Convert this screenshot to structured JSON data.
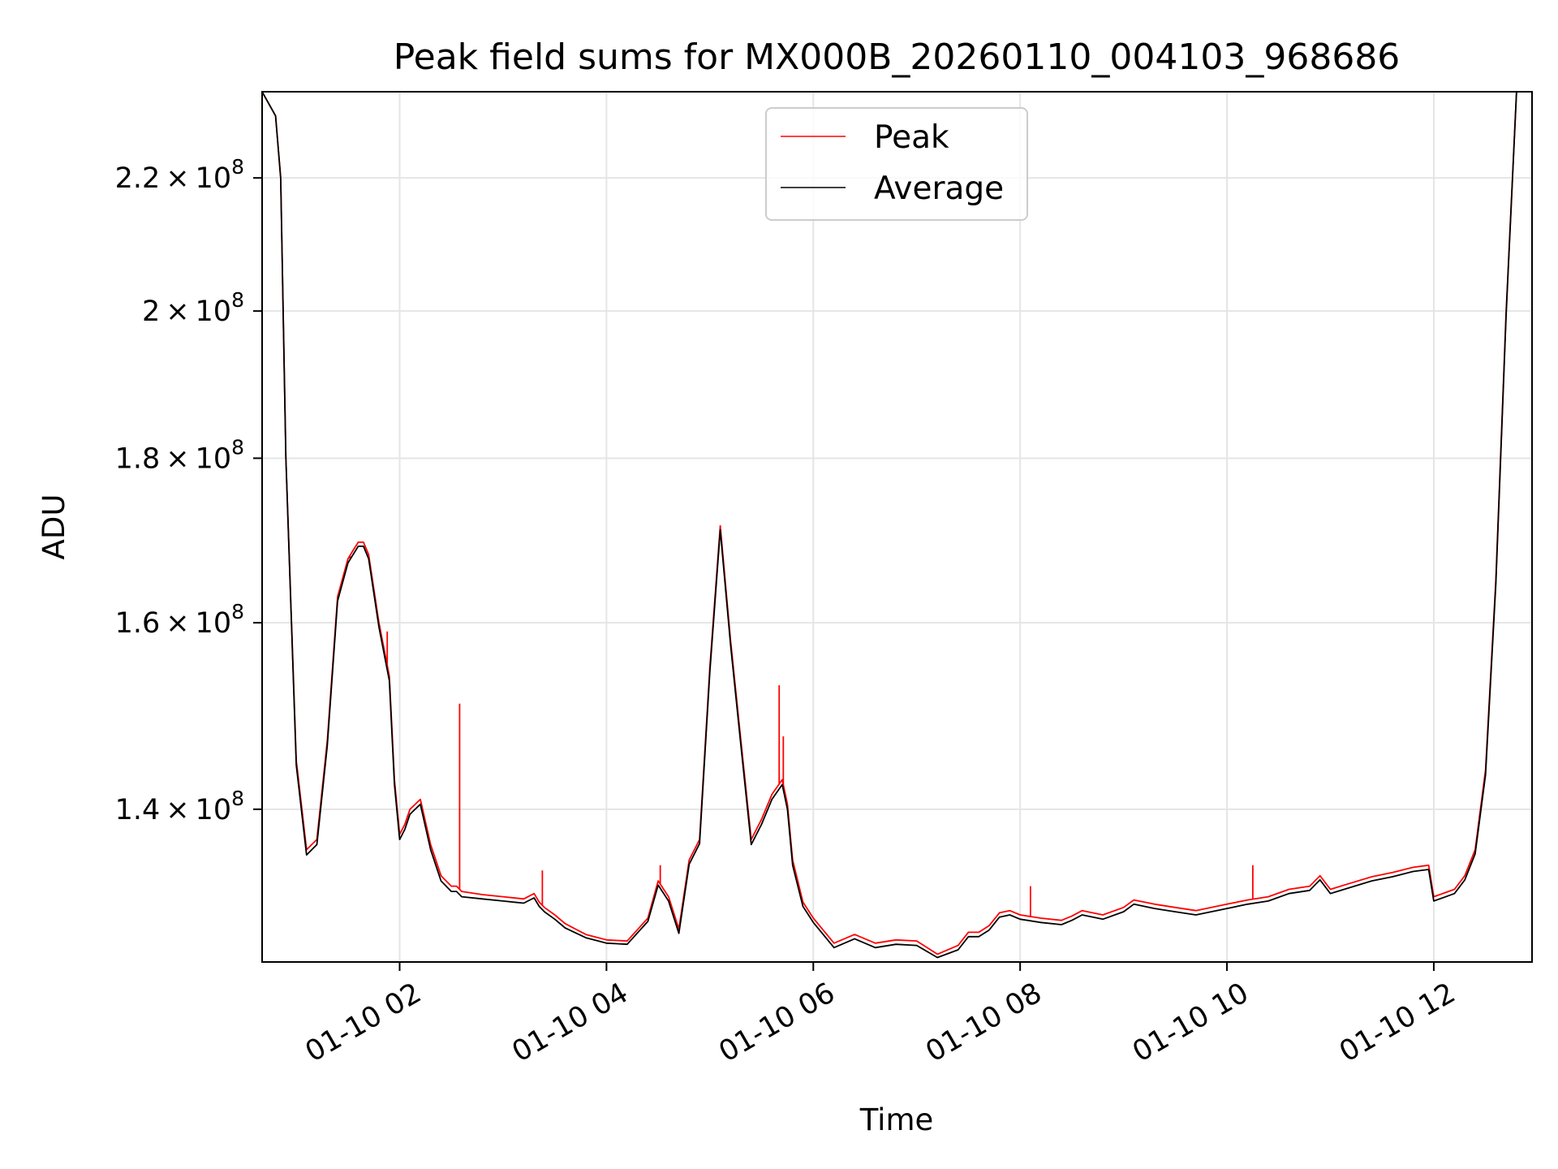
{
  "chart_data": {
    "type": "line",
    "title": "Peak field sums for MX000B_20260110_004103_968686",
    "xlabel": "Time",
    "ylabel": "ADU",
    "x_unit": "hours since 01-10 00:00",
    "xlim": [
      0.67,
      12.95
    ],
    "ylim": [
      125500000.0,
      234000000.0
    ],
    "y_scale": "log",
    "grid": true,
    "legend_position": "upper-center",
    "x_ticks": [
      {
        "value": 2,
        "label": "01-10 02"
      },
      {
        "value": 4,
        "label": "01-10 04"
      },
      {
        "value": 6,
        "label": "01-10 06"
      },
      {
        "value": 8,
        "label": "01-10 08"
      },
      {
        "value": 10,
        "label": "01-10 10"
      },
      {
        "value": 12,
        "label": "01-10 12"
      }
    ],
    "y_ticks": [
      {
        "value": 140000000.0,
        "mantissa": "1.4",
        "exp": "8"
      },
      {
        "value": 160000000.0,
        "mantissa": "1.6",
        "exp": "8"
      },
      {
        "value": 180000000.0,
        "mantissa": "1.8",
        "exp": "8"
      },
      {
        "value": 200000000.0,
        "mantissa": "2",
        "exp": "8"
      },
      {
        "value": 220000000.0,
        "mantissa": "2.2",
        "exp": "8"
      }
    ],
    "series": [
      {
        "name": "Peak",
        "color": "#ff0000",
        "x": [
          0.67,
          0.8,
          0.85,
          0.9,
          1.0,
          1.1,
          1.2,
          1.3,
          1.4,
          1.5,
          1.55,
          1.6,
          1.65,
          1.7,
          1.8,
          1.9,
          1.95,
          2.0,
          2.05,
          2.1,
          2.2,
          2.3,
          2.4,
          2.5,
          2.55,
          2.6,
          2.8,
          3.0,
          3.2,
          3.3,
          3.35,
          3.4,
          3.5,
          3.6,
          3.8,
          4.0,
          4.2,
          4.4,
          4.5,
          4.6,
          4.7,
          4.8,
          4.9,
          5.0,
          5.1,
          5.2,
          5.3,
          5.4,
          5.5,
          5.6,
          5.7,
          5.75,
          5.8,
          5.9,
          6.0,
          6.2,
          6.4,
          6.6,
          6.8,
          7.0,
          7.2,
          7.4,
          7.5,
          7.6,
          7.7,
          7.8,
          7.9,
          8.0,
          8.2,
          8.4,
          8.5,
          8.6,
          8.8,
          9.0,
          9.1,
          9.3,
          9.5,
          9.7,
          10.0,
          10.2,
          10.4,
          10.6,
          10.8,
          10.9,
          11.0,
          11.2,
          11.4,
          11.6,
          11.8,
          11.95,
          12.0,
          12.2,
          12.3,
          12.4,
          12.5,
          12.6,
          12.7,
          12.8,
          12.95
        ],
        "y": [
          234000000.0,
          230000000.0,
          220000000.0,
          180000000.0,
          145000000.0,
          136000000.0,
          137000000.0,
          147000000.0,
          163000000.0,
          167500000.0,
          168500000.0,
          169500000.0,
          169500000.0,
          168000000.0,
          160000000.0,
          154000000.0,
          143000000.0,
          137500000.0,
          138500000.0,
          140000000.0,
          141000000.0,
          136500000.0,
          133500000.0,
          132500000.0,
          132500000.0,
          132000000.0,
          131700000.0,
          131500000.0,
          131300000.0,
          131800000.0,
          131000000.0,
          130500000.0,
          129800000.0,
          129000000.0,
          128000000.0,
          127500000.0,
          127400000.0,
          129500000.0,
          133000000.0,
          131500000.0,
          128500000.0,
          135000000.0,
          137000000.0,
          155000000.0,
          171500000.0,
          158000000.0,
          147000000.0,
          137000000.0,
          139000000.0,
          141500000.0,
          143000000.0,
          140500000.0,
          135000000.0,
          131000000.0,
          129500000.0,
          127200000.0,
          128000000.0,
          127200000.0,
          127500000.0,
          127400000.0,
          126200000.0,
          127000000.0,
          128200000.0,
          128200000.0,
          128800000.0,
          130000000.0,
          130200000.0,
          129800000.0,
          129500000.0,
          129300000.0,
          129700000.0,
          130200000.0,
          129800000.0,
          130500000.0,
          131200000.0,
          130800000.0,
          130500000.0,
          130200000.0,
          130800000.0,
          131200000.0,
          131500000.0,
          132200000.0,
          132500000.0,
          133500000.0,
          132200000.0,
          132800000.0,
          133400000.0,
          133800000.0,
          134300000.0,
          134500000.0,
          131500000.0,
          132200000.0,
          133500000.0,
          136000000.0,
          144000000.0,
          165000000.0,
          200000000.0,
          234000000.0,
          234000000.0
        ],
        "spikes": [
          {
            "x": 1.52,
            "y": 167500000.0
          },
          {
            "x": 1.88,
            "y": 159000000.0
          },
          {
            "x": 2.58,
            "y": 151000000.0
          },
          {
            "x": 3.38,
            "y": 134000000.0
          },
          {
            "x": 4.52,
            "y": 134500000.0
          },
          {
            "x": 5.67,
            "y": 153000000.0
          },
          {
            "x": 5.71,
            "y": 147500000.0
          },
          {
            "x": 8.1,
            "y": 132500000.0
          },
          {
            "x": 10.25,
            "y": 134500000.0
          }
        ]
      },
      {
        "name": "Average",
        "color": "#000000",
        "x": [
          0.67,
          0.8,
          0.85,
          0.9,
          1.0,
          1.1,
          1.2,
          1.3,
          1.4,
          1.5,
          1.55,
          1.6,
          1.65,
          1.7,
          1.8,
          1.9,
          1.95,
          2.0,
          2.05,
          2.1,
          2.2,
          2.3,
          2.4,
          2.5,
          2.55,
          2.6,
          2.8,
          3.0,
          3.2,
          3.3,
          3.35,
          3.4,
          3.5,
          3.6,
          3.8,
          4.0,
          4.2,
          4.4,
          4.5,
          4.6,
          4.7,
          4.8,
          4.9,
          5.0,
          5.1,
          5.2,
          5.3,
          5.4,
          5.5,
          5.6,
          5.7,
          5.75,
          5.8,
          5.9,
          6.0,
          6.2,
          6.4,
          6.6,
          6.8,
          7.0,
          7.2,
          7.4,
          7.5,
          7.6,
          7.7,
          7.8,
          7.9,
          8.0,
          8.2,
          8.4,
          8.5,
          8.6,
          8.8,
          9.0,
          9.1,
          9.3,
          9.5,
          9.7,
          10.0,
          10.2,
          10.4,
          10.6,
          10.8,
          10.9,
          11.0,
          11.2,
          11.4,
          11.6,
          11.8,
          11.95,
          12.0,
          12.2,
          12.3,
          12.4,
          12.5,
          12.6,
          12.7,
          12.8,
          12.95
        ],
        "y": [
          234000000.0,
          230000000.0,
          220000000.0,
          180000000.0,
          144500000.0,
          135500000.0,
          136500000.0,
          146500000.0,
          162500000.0,
          167000000.0,
          168000000.0,
          169000000.0,
          169000000.0,
          167500000.0,
          159500000.0,
          153500000.0,
          142500000.0,
          137000000.0,
          138000000.0,
          139500000.0,
          140500000.0,
          136000000.0,
          133000000.0,
          132000000.0,
          132000000.0,
          131500000.0,
          131300000.0,
          131100000.0,
          130900000.0,
          131400000.0,
          130600000.0,
          130100000.0,
          129400000.0,
          128600000.0,
          127700000.0,
          127200000.0,
          127100000.0,
          129200000.0,
          132600000.0,
          131100000.0,
          128100000.0,
          134600000.0,
          136600000.0,
          154500000.0,
          171000000.0,
          157500000.0,
          146500000.0,
          136500000.0,
          138500000.0,
          141000000.0,
          142500000.0,
          140000000.0,
          134500000.0,
          130600000.0,
          129100000.0,
          126800000.0,
          127600000.0,
          126800000.0,
          127100000.0,
          127000000.0,
          125900000.0,
          126600000.0,
          127800000.0,
          127800000.0,
          128400000.0,
          129600000.0,
          129800000.0,
          129400000.0,
          129100000.0,
          128900000.0,
          129300000.0,
          129800000.0,
          129400000.0,
          130100000.0,
          130800000.0,
          130400000.0,
          130100000.0,
          129800000.0,
          130400000.0,
          130800000.0,
          131100000.0,
          131800000.0,
          132100000.0,
          133100000.0,
          131800000.0,
          132400000.0,
          133000000.0,
          133400000.0,
          133900000.0,
          134100000.0,
          131100000.0,
          131800000.0,
          133100000.0,
          135600000.0,
          143500000.0,
          164500000.0,
          199500000.0,
          234000000.0,
          234000000.0
        ]
      }
    ]
  }
}
